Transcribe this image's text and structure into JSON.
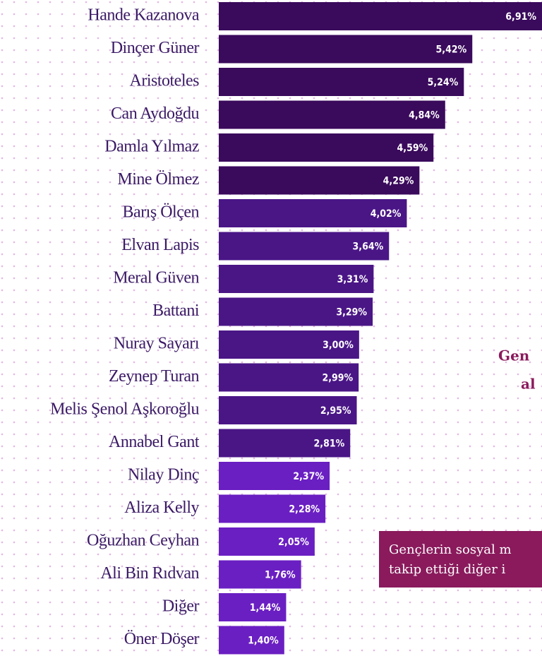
{
  "chart_data": {
    "type": "bar",
    "orientation": "horizontal",
    "categories": [
      "Hande Kazanova",
      "Dinçer Güner",
      "Aristoteles",
      "Can Aydoğdu",
      "Damla Yılmaz",
      "Mine Ölmez",
      "Barış Ölçen",
      "Elvan Lapis",
      "Meral Güven",
      "Battani",
      "Nuray Sayarı",
      "Zeynep Turan",
      "Melis Şenol Aşkoroğlu",
      "Annabel Gant",
      "Nilay Dinç",
      "Aliza Kelly",
      "Oğuzhan Ceyhan",
      "Ali Bin Rıdvan",
      "Diğer",
      "Öner Döşer"
    ],
    "values": [
      6.91,
      5.42,
      5.24,
      4.84,
      4.59,
      4.29,
      4.02,
      3.64,
      3.31,
      3.29,
      3.0,
      2.99,
      2.95,
      2.81,
      2.37,
      2.28,
      2.05,
      1.76,
      1.44,
      1.4
    ],
    "value_labels": [
      "6,91%",
      "5,42%",
      "5,24%",
      "4,84%",
      "4,59%",
      "4,29%",
      "4,02%",
      "3,64%",
      "3,31%",
      "3,29%",
      "3,00%",
      "2,99%",
      "2,95%",
      "2,81%",
      "2,37%",
      "2,28%",
      "2,05%",
      "1,76%",
      "1,44%",
      "1,40%"
    ],
    "colors": [
      "#3a0a5c",
      "#3a0a5c",
      "#3a0a5c",
      "#3a0a5c",
      "#3a0a5c",
      "#3a0a5c",
      "#4a1686",
      "#4a1686",
      "#4a1686",
      "#4a1686",
      "#4a1686",
      "#4a1686",
      "#4a1686",
      "#4a1686",
      "#6a1fc2",
      "#6a1fc2",
      "#6a1fc2",
      "#6a1fc2",
      "#6a1fc2",
      "#6a1fc2"
    ],
    "annotations": [
      "Gen",
      "al"
    ],
    "note_lines": [
      "Gençlerin sosyal m",
      "takip ettiği diğer i"
    ]
  }
}
